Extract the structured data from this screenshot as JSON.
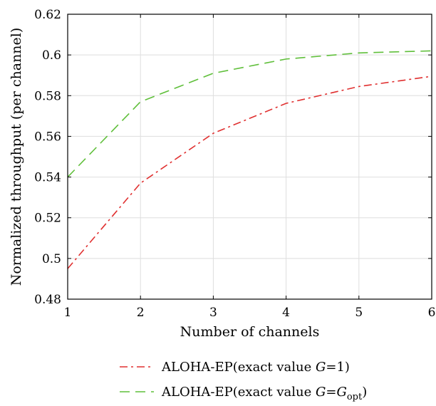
{
  "chart_data": {
    "type": "line",
    "xlabel": "Number of channels",
    "ylabel": "Normalized throughput (per channel)",
    "xlim": [
      1,
      6
    ],
    "ylim": [
      0.48,
      0.62
    ],
    "xticks": [
      1,
      2,
      3,
      4,
      5,
      6
    ],
    "yticks": [
      0.48,
      0.5,
      0.52,
      0.54,
      0.56,
      0.58,
      0.6,
      0.62
    ],
    "ytick_labels": [
      "0.48",
      "0.5",
      "0.52",
      "0.54",
      "0.56",
      "0.58",
      "0.6",
      "0.62"
    ],
    "grid": true,
    "legend_position": "bottom-center-outside",
    "x": [
      1,
      2,
      3,
      4,
      5,
      6
    ],
    "series": [
      {
        "name": "ALOHA-EP(exact value G=1)",
        "legend_text": "ALOHA-EP(exact value ",
        "legend_var": "G",
        "legend_rest": "=1)",
        "color": "#e03030",
        "dash": "dashdot",
        "values": [
          0.495,
          0.537,
          0.5615,
          0.5762,
          0.5845,
          0.5895
        ]
      },
      {
        "name": "ALOHA-EP(exact value G=G_opt)",
        "legend_text": "ALOHA-EP(exact value ",
        "legend_var": "G",
        "legend_rest": "=",
        "legend_var2": "G",
        "legend_sub": "opt",
        "legend_close": ")",
        "color": "#5fbf3a",
        "dash": "dashed",
        "values": [
          0.54,
          0.577,
          0.591,
          0.598,
          0.601,
          0.602
        ]
      }
    ]
  }
}
